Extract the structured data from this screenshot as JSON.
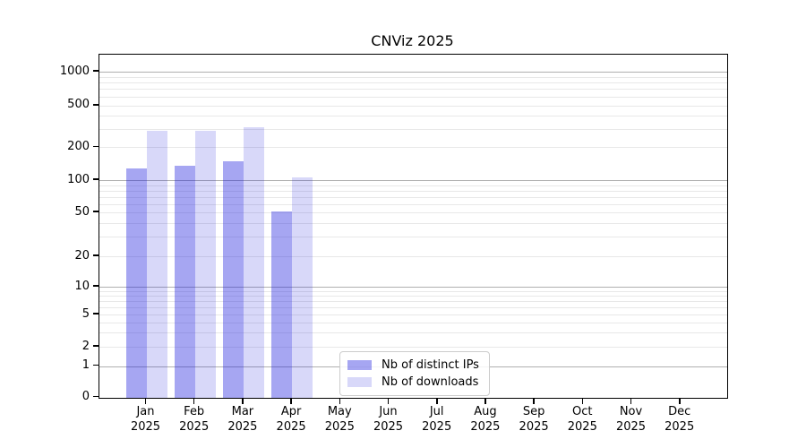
{
  "chart_data": {
    "type": "bar",
    "title": "CNViz 2025",
    "categories": [
      "Jan",
      "Feb",
      "Mar",
      "Apr",
      "May",
      "Jun",
      "Jul",
      "Aug",
      "Sep",
      "Oct",
      "Nov",
      "Dec"
    ],
    "category_year_line": "2025",
    "series": [
      {
        "name": "Nb of distinct IPs",
        "values": [
          129,
          135,
          150,
          51,
          0,
          0,
          0,
          0,
          0,
          0,
          0,
          0
        ],
        "color": "rgba(20,20,220,0.38)"
      },
      {
        "name": "Nb of downloads",
        "values": [
          287,
          289,
          311,
          105,
          0,
          0,
          0,
          0,
          0,
          0,
          0,
          0
        ],
        "color": "rgba(20,20,220,0.165)"
      }
    ],
    "y_ticks": [
      0,
      1,
      2,
      5,
      10,
      20,
      50,
      100,
      200,
      500,
      1000
    ],
    "y_scale": "symlog",
    "ylim": [
      0,
      1400
    ],
    "grid": true,
    "major_grid_values": [
      1,
      10,
      100,
      1000
    ],
    "major_grid_color": "#b0b0b0",
    "minor_grid_color": "#e8e8e8",
    "legend_position": "lower center"
  }
}
